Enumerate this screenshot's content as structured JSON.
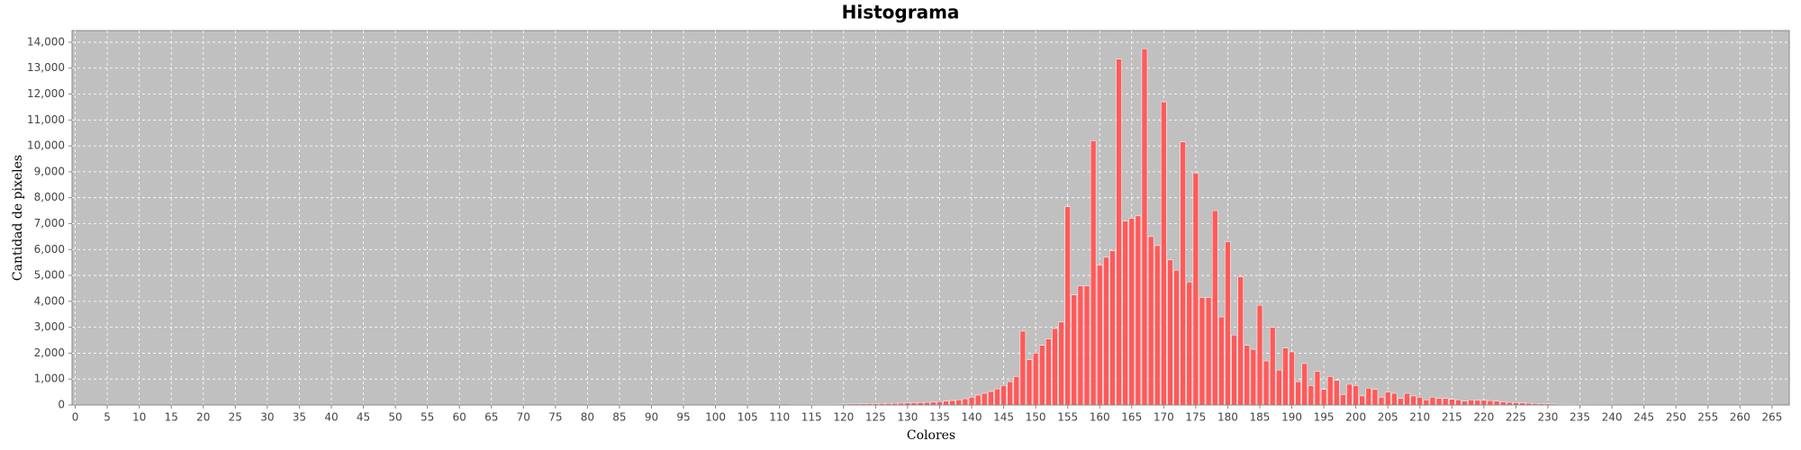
{
  "chart_data": {
    "type": "bar",
    "title": "Histograma",
    "x_label": "Colores",
    "y_label": "Cantidad de pixeles",
    "x": [
      0,
      1,
      2,
      3,
      4,
      5,
      6,
      7,
      8,
      9,
      10,
      11,
      12,
      13,
      14,
      15,
      16,
      17,
      18,
      19,
      20,
      21,
      22,
      23,
      24,
      25,
      26,
      27,
      28,
      29,
      30,
      31,
      32,
      33,
      34,
      35,
      36,
      37,
      38,
      39,
      40,
      41,
      42,
      43,
      44,
      45,
      46,
      47,
      48,
      49,
      50,
      51,
      52,
      53,
      54,
      55,
      56,
      57,
      58,
      59,
      60,
      61,
      62,
      63,
      64,
      65,
      66,
      67,
      68,
      69,
      70,
      71,
      72,
      73,
      74,
      75,
      76,
      77,
      78,
      79,
      80,
      81,
      82,
      83,
      84,
      85,
      86,
      87,
      88,
      89,
      90,
      91,
      92,
      93,
      94,
      95,
      96,
      97,
      98,
      99,
      100,
      101,
      102,
      103,
      104,
      105,
      106,
      107,
      108,
      109,
      110,
      111,
      112,
      113,
      114,
      115,
      116,
      117,
      118,
      119,
      120,
      121,
      122,
      123,
      124,
      125,
      126,
      127,
      128,
      129,
      130,
      131,
      132,
      133,
      134,
      135,
      136,
      137,
      138,
      139,
      140,
      141,
      142,
      143,
      144,
      145,
      146,
      147,
      148,
      149,
      150,
      151,
      152,
      153,
      154,
      155,
      156,
      157,
      158,
      159,
      160,
      161,
      162,
      163,
      164,
      165,
      166,
      167,
      168,
      169,
      170,
      171,
      172,
      173,
      174,
      175,
      176,
      177,
      178,
      179,
      180,
      181,
      182,
      183,
      184,
      185,
      186,
      187,
      188,
      189,
      190,
      191,
      192,
      193,
      194,
      195,
      196,
      197,
      198,
      199,
      200,
      201,
      202,
      203,
      204,
      205,
      206,
      207,
      208,
      209,
      210,
      211,
      212,
      213,
      214,
      215,
      216,
      217,
      218,
      219,
      220,
      221,
      222,
      223,
      224,
      225,
      226,
      227,
      228,
      229,
      230,
      231,
      232,
      233,
      234,
      235,
      236,
      237,
      238,
      239,
      240,
      241,
      242,
      243,
      244,
      245,
      246,
      247,
      248,
      249,
      250,
      251,
      252,
      253,
      254,
      255
    ],
    "values": [
      0,
      0,
      0,
      0,
      0,
      0,
      0,
      0,
      0,
      0,
      0,
      0,
      0,
      0,
      0,
      0,
      0,
      0,
      0,
      0,
      0,
      0,
      0,
      0,
      0,
      0,
      0,
      0,
      0,
      0,
      0,
      0,
      0,
      0,
      0,
      0,
      0,
      0,
      0,
      0,
      0,
      0,
      0,
      0,
      0,
      0,
      0,
      0,
      0,
      0,
      0,
      0,
      0,
      0,
      0,
      0,
      0,
      0,
      0,
      0,
      0,
      0,
      0,
      0,
      0,
      0,
      0,
      0,
      0,
      0,
      0,
      0,
      0,
      0,
      0,
      0,
      0,
      0,
      0,
      0,
      0,
      0,
      0,
      0,
      0,
      0,
      0,
      0,
      0,
      0,
      0,
      0,
      0,
      0,
      0,
      0,
      0,
      0,
      0,
      0,
      0,
      0,
      0,
      0,
      0,
      0,
      0,
      0,
      0,
      0,
      10,
      10,
      15,
      15,
      20,
      20,
      25,
      25,
      30,
      30,
      35,
      40,
      40,
      45,
      50,
      50,
      55,
      60,
      65,
      70,
      80,
      85,
      90,
      100,
      110,
      130,
      150,
      170,
      200,
      240,
      300,
      380,
      450,
      520,
      620,
      750,
      900,
      1100,
      2850,
      1750,
      2000,
      2300,
      2550,
      2950,
      3200,
      7650,
      4250,
      4600,
      4600,
      10200,
      5400,
      5700,
      5950,
      13350,
      7100,
      7200,
      7300,
      13750,
      6500,
      6150,
      11700,
      5600,
      5200,
      10150,
      4750,
      8950,
      4150,
      4150,
      7500,
      3400,
      6300,
      2700,
      4950,
      2300,
      2150,
      3850,
      1700,
      3000,
      1350,
      2200,
      2050,
      900,
      1600,
      750,
      1300,
      600,
      1100,
      950,
      400,
      800,
      750,
      350,
      650,
      600,
      300,
      500,
      450,
      250,
      450,
      350,
      300,
      200,
      300,
      250,
      250,
      220,
      200,
      150,
      200,
      180,
      180,
      170,
      150,
      120,
      100,
      90,
      80,
      70,
      60,
      50,
      40,
      35,
      30,
      28,
      25,
      22,
      20,
      18,
      16,
      15,
      14,
      12,
      12,
      10,
      10,
      9,
      8,
      8,
      7,
      6,
      6,
      5,
      5,
      4,
      4,
      3
    ],
    "color": "#ff5a5a",
    "xlim": [
      -0.5,
      267.7
    ],
    "ylim": [
      0,
      14450
    ],
    "xticks": [
      0,
      5,
      10,
      15,
      20,
      25,
      30,
      35,
      40,
      45,
      50,
      55,
      60,
      65,
      70,
      75,
      80,
      85,
      90,
      95,
      100,
      105,
      110,
      115,
      120,
      125,
      130,
      135,
      140,
      145,
      150,
      155,
      160,
      165,
      170,
      175,
      180,
      185,
      190,
      195,
      200,
      205,
      210,
      215,
      220,
      225,
      230,
      235,
      240,
      245,
      250,
      255,
      260,
      265
    ],
    "yticks": [
      0,
      {
        "value": 1000,
        "label": "1,000"
      },
      {
        "value": 2000,
        "label": "2,000"
      },
      {
        "value": 3000,
        "label": "3,000"
      },
      {
        "value": 4000,
        "label": "4,000"
      },
      {
        "value": 5000,
        "label": "5,000"
      },
      {
        "value": 6000,
        "label": "6,000"
      },
      {
        "value": 7000,
        "label": "7,000"
      },
      {
        "value": 8000,
        "label": "8,000"
      },
      {
        "value": 9000,
        "label": "9,000"
      },
      {
        "value": 10000,
        "label": "10,000"
      },
      {
        "value": 11000,
        "label": "11,000"
      },
      {
        "value": 12000,
        "label": "12,000"
      },
      {
        "value": 13000,
        "label": "13,000"
      },
      {
        "value": 14000,
        "label": "14,000"
      }
    ],
    "grid": true
  }
}
